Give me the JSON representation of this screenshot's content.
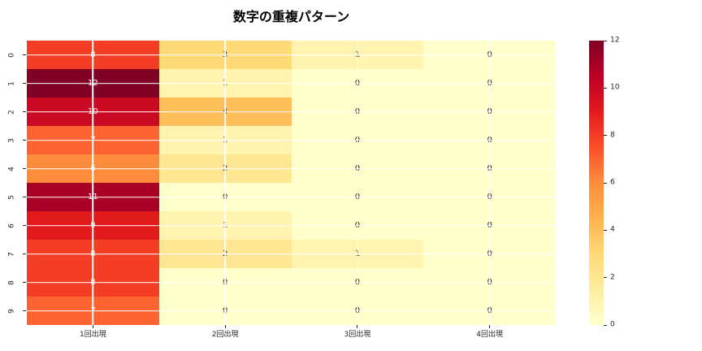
{
  "title": "数字の重複パターン",
  "chart_data": {
    "type": "heatmap",
    "title": "数字の重複パターン",
    "x_tick_labels": [
      "1回出現",
      "2回出現",
      "3回出現",
      "4回出現"
    ],
    "y_tick_labels": [
      "0",
      "1",
      "2",
      "3",
      "4",
      "5",
      "6",
      "7",
      "8",
      "9"
    ],
    "values": [
      [
        8,
        3,
        1,
        0
      ],
      [
        12,
        1,
        0,
        0
      ],
      [
        10,
        4,
        0,
        0
      ],
      [
        7,
        1,
        0,
        0
      ],
      [
        6,
        2,
        0,
        0
      ],
      [
        11,
        0,
        0,
        0
      ],
      [
        9,
        1,
        0,
        0
      ],
      [
        8,
        2,
        1,
        0
      ],
      [
        8,
        0,
        0,
        0
      ],
      [
        7,
        0,
        0,
        0
      ]
    ],
    "vmin": 0,
    "vmax": 12,
    "colormap": "YlOrRd",
    "colorbar_ticks": [
      0,
      2,
      4,
      6,
      8,
      10,
      12
    ],
    "value_colors": {
      "0": "#ffffcc",
      "1": "#fff3af",
      "2": "#ffe692",
      "3": "#fed976",
      "4": "#febe5a",
      "5": "#fda647",
      "6": "#fd8d3c",
      "7": "#fc6330",
      "8": "#f43d25",
      "9": "#e31a1c",
      "10": "#ca0923",
      "11": "#a90026",
      "12": "#800026"
    },
    "annot_white_threshold": 6,
    "grid_color": "#ffffff",
    "text_color_dark": "#1a1a1a",
    "text_color_light": "#ffffff",
    "tick_color": "#262626",
    "colorbar_gradient_stops": [
      "#ffffcc",
      "#ffeda0",
      "#fed976",
      "#feb24c",
      "#fd8d3c",
      "#fc4e2a",
      "#e31a1c",
      "#bd0026",
      "#800026"
    ]
  }
}
